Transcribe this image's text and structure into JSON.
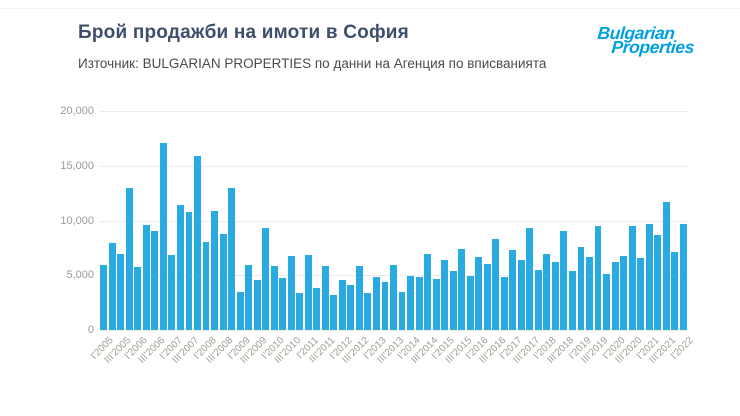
{
  "header": {
    "title": "Брой продажби на имоти в София",
    "subtitle": "Източник: BULGARIAN PROPERTIES по данни на Агенция по вписванията",
    "logo": {
      "line1": "Bulgarian",
      "line2": "Properties"
    }
  },
  "colors": {
    "bar": "#29abe2",
    "logo": "#009fe3",
    "title": "#3e4f6b",
    "subtitle": "#4b4b4b",
    "axis_labels": "#a59d93",
    "gridline": "#ececec"
  },
  "chart_data": {
    "type": "bar",
    "title": "Брой продажби на имоти в София",
    "subtitle": "Източник: BULGARIAN PROPERTIES по данни на Агенция по вписванията",
    "xlabel": "",
    "ylabel": "",
    "ylim": [
      0,
      20000
    ],
    "yticks": [
      0,
      5000,
      10000,
      15000,
      20000
    ],
    "ytick_labels": [
      "0",
      "5,000",
      "10,000",
      "15,000",
      "20,000"
    ],
    "grid": true,
    "legend": "none",
    "tick_every": 2,
    "categories": [
      "I'2005",
      "II'2005",
      "III'2005",
      "IV'2005",
      "I'2006",
      "II'2006",
      "III'2006",
      "IV'2006",
      "I'2007",
      "II'2007",
      "III'2007",
      "IV'2007",
      "I'2008",
      "II'2008",
      "III'2008",
      "IV'2008",
      "I'2009",
      "II'2009",
      "III'2009",
      "IV'2009",
      "I'2010",
      "II'2010",
      "III'2010",
      "IV'2010",
      "I'2011",
      "II'2011",
      "III'2011",
      "IV'2011",
      "I'2012",
      "II'2012",
      "III'2012",
      "IV'2012",
      "I'2013",
      "II'2013",
      "III'2013",
      "IV'2013",
      "I'2014",
      "II'2014",
      "III'2014",
      "IV'2014",
      "I'2015",
      "II'2015",
      "III'2015",
      "IV'2015",
      "I'2016",
      "II'2016",
      "III'2016",
      "IV'2016",
      "I'2017",
      "II'2017",
      "III'2017",
      "IV'2017",
      "I'2018",
      "II'2018",
      "III'2018",
      "IV'2018",
      "I'2019",
      "II'2019",
      "III'2019",
      "IV'2019",
      "I'2020",
      "II'2020",
      "III'2020",
      "IV'2020",
      "I'2021",
      "II'2021",
      "III'2021",
      "IV'2021",
      "I'2022"
    ],
    "values": [
      5900,
      7950,
      6900,
      12950,
      5750,
      9550,
      9000,
      17100,
      6850,
      11400,
      10750,
      15900,
      8000,
      10850,
      8800,
      13000,
      3500,
      5900,
      4600,
      9350,
      5850,
      4750,
      6750,
      3400,
      6850,
      3800,
      5850,
      3200,
      4550,
      4100,
      5850,
      3350,
      4850,
      4400,
      5950,
      3500,
      4950,
      4850,
      6900,
      4700,
      6400,
      5400,
      7400,
      4950,
      6700,
      6000,
      8300,
      4850,
      7300,
      6350,
      9300,
      5500,
      6950,
      6250,
      9000,
      5400,
      7600,
      6700,
      9500,
      5100,
      6250,
      6800,
      9500,
      6550,
      9700,
      8700,
      11650,
      7150,
      9650
    ]
  }
}
